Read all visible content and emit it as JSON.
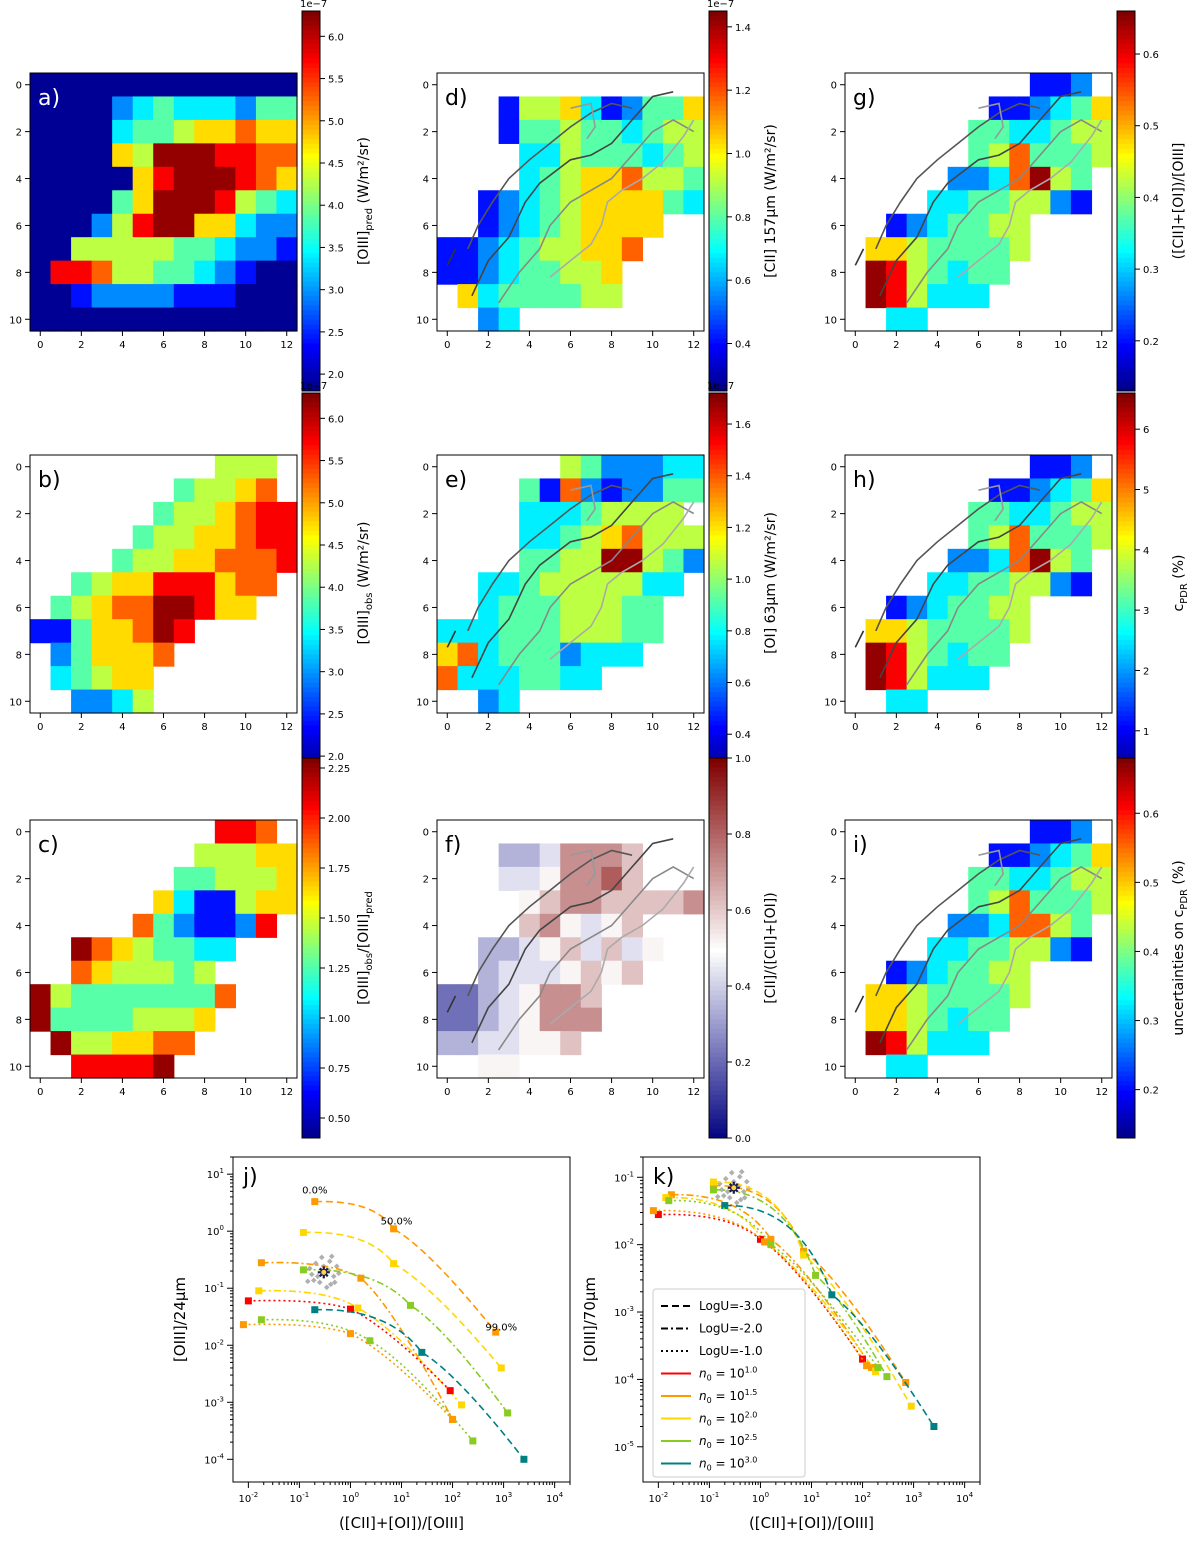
{
  "chart_data": [
    {
      "id": "a",
      "type": "heatmap",
      "panel_label": "a)",
      "label_color": "#ffffff",
      "colorbar": {
        "label": "[OIII]pred (W/m²/sr)",
        "label_main": "[OIII]",
        "label_sub": "pred",
        "label_rest": " (W/m²/sr)",
        "min": 1.8,
        "max": 6.3,
        "ticks": [
          "2.0",
          "2.5",
          "3.0",
          "3.5",
          "4.0",
          "4.5",
          "5.0",
          "5.5",
          "6.0"
        ],
        "tick_values": [
          2.0,
          2.5,
          3.0,
          3.5,
          4.0,
          4.5,
          5.0,
          5.5,
          6.0
        ],
        "exponent": "1e−7"
      },
      "xticks": [
        "0",
        "2",
        "4",
        "6",
        "8",
        "10",
        "12"
      ],
      "yticks": [
        "0",
        "2",
        "4",
        "6",
        "8",
        "10"
      ],
      "grid": [
        "0000000000000",
        "0000234333244",
        "0000344566766",
        "0000659998877",
        "0000068999876",
        "0000469998543",
        "0002589966322",
        "0055555443221",
        "0887554432100",
        "0012222111000",
        "0000000000000"
      ]
    },
    {
      "id": "b",
      "type": "heatmap",
      "panel_label": "b)",
      "label_color": "#000000",
      "colorbar": {
        "label": "[OIII]obs (W/m²/sr)",
        "label_main": "[OIII]",
        "label_sub": "obs",
        "label_rest": " (W/m²/sr)",
        "min": 1.8,
        "max": 6.3,
        "ticks": [
          "2.0",
          "2.5",
          "3.0",
          "3.5",
          "4.0",
          "4.5",
          "5.0",
          "5.5",
          "6.0"
        ],
        "tick_values": [
          2.0,
          2.5,
          3.0,
          3.5,
          4.0,
          4.5,
          5.0,
          5.5,
          6.0
        ],
        "exponent": "1e−7"
      },
      "xticks": [
        "0",
        "2",
        "4",
        "6",
        "8",
        "10",
        "12"
      ],
      "yticks": [
        "0",
        "2",
        "4",
        "6",
        "8",
        "10"
      ],
      "grid": [
        ".........555.",
        ".......45567.",
        "......4556788",
        ".....45566788",
        "....455667778",
        "..4566888677.",
        ".4567799866..",
        "11466798.....",
        ".246667......",
        ".34566.......",
        "..2235......."
      ]
    },
    {
      "id": "c",
      "type": "heatmap",
      "panel_label": "c)",
      "label_color": "#000000",
      "colorbar": {
        "label": "[OIII]obs/[OIII]pred",
        "label_main": "[OIII]",
        "label_sub": "obs",
        "label_rest": "/[OIII]",
        "label_sub2": "pred",
        "min": 0.4,
        "max": 2.3,
        "ticks": [
          "0.50",
          "0.75",
          "1.00",
          "1.25",
          "1.50",
          "1.75",
          "2.00",
          "2.25"
        ],
        "tick_values": [
          0.5,
          0.75,
          1.0,
          1.25,
          1.5,
          1.75,
          2.0,
          2.25
        ],
        "exponent": ""
      },
      "xticks": [
        "0",
        "2",
        "4",
        "6",
        "8",
        "10",
        "12"
      ],
      "yticks": [
        "0",
        "2",
        "4",
        "6",
        "8",
        "10"
      ],
      "grid": [
        ".........887.",
        "........55566",
        ".......445556",
        "......6311566",
        ".....7421128.",
        "..97654433...",
        "..7655545....",
        "9544444447...",
        "944445556....",
        ".9556677.....",
        "..88889......"
      ]
    },
    {
      "id": "d",
      "type": "heatmap",
      "panel_label": "d)",
      "label_color": "#000000",
      "colorbar": {
        "label": "[CII] 157μm (W/m²/sr)",
        "min": 0.25,
        "max": 1.45,
        "ticks": [
          "0.4",
          "0.6",
          "0.8",
          "1.0",
          "1.2",
          "1.4"
        ],
        "tick_values": [
          0.4,
          0.6,
          0.8,
          1.0,
          1.2,
          1.4
        ],
        "exponent": "1e−7"
      },
      "xticks": [
        "0",
        "2",
        "4",
        "6",
        "8",
        "10",
        "12"
      ],
      "yticks": [
        "0",
        "2",
        "4",
        "6",
        "8",
        "10"
      ],
      "grid": [
        ".............",
        "...15563124469",
        "...144544345578",
        "....33544434567",
        "....345667554..",
        "..12345666643..",
        "..123456666....",
        "1123455667.....",
        "112344556......",
        ".63444455......",
        "..23.........."
      ],
      "contours": true
    },
    {
      "id": "e",
      "type": "heatmap",
      "panel_label": "e)",
      "label_color": "#000000",
      "colorbar": {
        "label": "[OI] 63μm (W/m²/sr)",
        "min": 0.25,
        "max": 1.72,
        "ticks": [
          "0.4",
          "0.6",
          "0.8",
          "1.0",
          "1.2",
          "1.4",
          "1.6"
        ],
        "tick_values": [
          0.4,
          0.6,
          0.8,
          1.0,
          1.2,
          1.4,
          1.6
        ],
        "exponent": "1e−7"
      },
      "xticks": [
        "0",
        "2",
        "4",
        "6",
        "8",
        "10",
        "12"
      ],
      "yticks": [
        "0",
        "2",
        "4",
        "6",
        "8",
        "10"
      ],
      "grid": [
        "......5422233",
        "....4172122444",
        "....33345555.",
        "....334567555",
        "....445599542",
        "..3345555533.",
        "..344455544..",
        "33344455544..",
        "6734442333...",
        "73334433.....",
        "..23........."
      ],
      "contours": true
    },
    {
      "id": "f",
      "type": "heatmap",
      "panel_label": "f)",
      "label_color": "#000000",
      "colorbar": {
        "label": "[CII]/([CII]+[OI])",
        "min": 0.0,
        "max": 1.0,
        "ticks": [
          "0.0",
          "0.2",
          "0.4",
          "0.6",
          "0.8",
          "1.0"
        ],
        "tick_values": [
          0.0,
          0.2,
          0.4,
          0.6,
          0.8,
          1.0
        ],
        "exponent": ""
      },
      "colormap": "bwr",
      "xticks": [
        "0",
        "2",
        "4",
        "6",
        "8",
        "10",
        "12"
      ],
      "yticks": [
        "0",
        "2",
        "4",
        "6",
        "8",
        "10"
      ],
      "grid": [
        ".............",
        "...3347776...",
        "...4457786...",
        "....567766667",
        "....675456...",
        "..334564645..",
        "..34445656...",
        "22345776.....",
        "22345777.....",
        "3344556......",
        "..55........."
      ],
      "contours": true
    },
    {
      "id": "g",
      "type": "heatmap",
      "panel_label": "g)",
      "label_color": "#000000",
      "colorbar": {
        "label": "([CII]+[OI])/[OIII]",
        "min": 0.13,
        "max": 0.66,
        "ticks": [
          "0.2",
          "0.3",
          "0.4",
          "0.5",
          "0.6"
        ],
        "tick_values": [
          0.2,
          0.3,
          0.4,
          0.5,
          0.6
        ],
        "exponent": ""
      },
      "xticks": [
        "0",
        "2",
        "4",
        "6",
        "8",
        "10",
        "12"
      ],
      "yticks": [
        "0",
        "2",
        "4",
        "6",
        "8",
        "10"
      ],
      "grid": [
        ".........112.",
        ".......112346",
        "......4433455",
        "......45744455",
        ".....2237954.",
        "....33445521.",
        "..1234455....",
        ".66544445....",
        ".9854344.....",
        ".985333......",
        "..33........."
      ],
      "contours": true
    },
    {
      "id": "h",
      "type": "heatmap",
      "panel_label": "h)",
      "label_color": "#000000",
      "colorbar": {
        "label": "cPDR (%)",
        "label_main": "c",
        "label_sub": "PDR",
        "label_rest": " (%)",
        "min": 0.3,
        "max": 6.6,
        "ticks": [
          "1",
          "2",
          "3",
          "4",
          "5",
          "6"
        ],
        "tick_values": [
          1,
          2,
          3,
          4,
          5,
          6
        ],
        "exponent": ""
      },
      "xticks": [
        "0",
        "2",
        "4",
        "6",
        "8",
        "10",
        "12"
      ],
      "yticks": [
        "0",
        "2",
        "4",
        "6",
        "8",
        "10"
      ],
      "grid": [
        ".........112.",
        ".......112346",
        "......4433455",
        "......45744455",
        ".....2237954.",
        "....33445521.",
        "..1234455....",
        ".66544445....",
        ".9854344.....",
        ".985333......",
        "..33........."
      ],
      "contours": true
    },
    {
      "id": "i",
      "type": "heatmap",
      "panel_label": "i)",
      "label_color": "#000000",
      "colorbar": {
        "label": "uncertainties on cPDR (%)",
        "label_main": "uncertainties on c",
        "label_sub": "PDR",
        "label_rest": " (%)",
        "min": 0.13,
        "max": 0.68,
        "ticks": [
          "0.2",
          "0.3",
          "0.4",
          "0.5",
          "0.6"
        ],
        "tick_values": [
          0.2,
          0.3,
          0.4,
          0.5,
          0.6
        ],
        "exponent": ""
      },
      "xticks": [
        "0",
        "2",
        "4",
        "6",
        "8",
        "10",
        "12"
      ],
      "yticks": [
        "0",
        "2",
        "4",
        "6",
        "8",
        "10"
      ],
      "grid": [
        ".........112.",
        ".......112346",
        "......4433455",
        "......45744455",
        ".....2237754.",
        "....33445521.",
        "..1234455....",
        ".66544445....",
        ".6654344.....",
        ".985333......",
        "..33........."
      ],
      "contours": true
    },
    {
      "id": "j",
      "type": "line",
      "panel_label": "j)",
      "xscale": "log",
      "yscale": "log",
      "xlabel": "([CII]+[OI])/[OIII]",
      "ylabel": "[OIII]/24μm",
      "xlim": [
        0.005,
        20000
      ],
      "ylim": [
        4e-05,
        20
      ],
      "annotations": [
        {
          "text": "0.0%",
          "x": 0.2,
          "y": 4.6
        },
        {
          "text": "50.0%",
          "x": 8,
          "y": 1.3
        },
        {
          "text": "99.0%",
          "x": 900,
          "y": 0.018
        }
      ],
      "series": [
        {
          "name": "n0=10^1.5 LogU=-3",
          "color": "#ff9900",
          "dash": "dashed",
          "x": [
            0.2,
            7,
            700
          ],
          "y": [
            3.3,
            1.1,
            0.017
          ]
        },
        {
          "name": "n0=10^2.0 LogU=-3",
          "color": "#ffd700",
          "dash": "dashed",
          "x": [
            0.12,
            7,
            900
          ],
          "y": [
            0.95,
            0.27,
            0.004
          ]
        },
        {
          "name": "n0=10^1.5 LogU=-2",
          "color": "#ff9900",
          "dash": "dashdot",
          "x": [
            0.018,
            1.6,
            100
          ],
          "y": [
            0.28,
            0.15,
            0.0005
          ]
        },
        {
          "name": "n0=10^2.5 LogU=-2",
          "color": "#88cc22",
          "dash": "dashdot",
          "x": [
            0.12,
            15,
            1200
          ],
          "y": [
            0.21,
            0.05,
            0.00065
          ]
        },
        {
          "name": "n0=10^2.0 LogU=-2",
          "color": "#ffd700",
          "dash": "dashdot",
          "x": [
            0.016,
            1.4,
            150
          ],
          "y": [
            0.09,
            0.045,
            0.0009
          ]
        },
        {
          "name": "n0=10^1.0 LogU=-1",
          "color": "#ff0000",
          "dash": "dotted",
          "x": [
            0.01,
            1,
            90
          ],
          "y": [
            0.06,
            0.043,
            0.0016
          ]
        },
        {
          "name": "n0=10^3.0 LogU=-2",
          "color": "#008080",
          "dash": "dashed",
          "x": [
            0.2,
            25,
            2500
          ],
          "y": [
            0.042,
            0.0075,
            0.0001
          ]
        },
        {
          "name": "n0=10^2.5 LogU=-1",
          "color": "#88cc22",
          "dash": "dotted",
          "x": [
            0.018,
            2.4,
            250
          ],
          "y": [
            0.028,
            0.012,
            0.00021
          ]
        },
        {
          "name": "n0=10^1.5 LogU=-1",
          "color": "#ff9900",
          "dash": "dotted",
          "x": [
            0.008,
            1,
            100
          ],
          "y": [
            0.023,
            0.016,
            0.0005
          ]
        }
      ],
      "observed": {
        "x": 0.3,
        "y": 0.19
      }
    },
    {
      "id": "k",
      "type": "line",
      "panel_label": "k)",
      "xscale": "log",
      "yscale": "log",
      "xlabel": "([CII]+[OI])/[OIII]",
      "ylabel": "[OIII]/70μm",
      "xlim": [
        0.005,
        20000
      ],
      "ylim": [
        3e-06,
        0.2
      ],
      "series": [
        {
          "name": "n0=10^1.5 LogU=-3",
          "color": "#ff9900",
          "dash": "dashed",
          "x": [
            0.12,
            7,
            700
          ],
          "y": [
            0.075,
            0.008,
            9e-05
          ]
        },
        {
          "name": "n0=10^2.0 LogU=-3",
          "color": "#ffd700",
          "dash": "dashed",
          "x": [
            0.12,
            7,
            900
          ],
          "y": [
            0.085,
            0.007,
            4e-05
          ]
        },
        {
          "name": "n0=10^1.5 LogU=-2",
          "color": "#ff9900",
          "dash": "dashdot",
          "x": [
            0.018,
            1.6,
            150
          ],
          "y": [
            0.055,
            0.012,
            0.00015
          ]
        },
        {
          "name": "n0=10^2.5 LogU=-2",
          "color": "#88cc22",
          "dash": "dashdot",
          "x": [
            0.12,
            12,
            300
          ],
          "y": [
            0.065,
            0.0035,
            0.00011
          ]
        },
        {
          "name": "n0=10^2.0 LogU=-2",
          "color": "#ffd700",
          "dash": "dashdot",
          "x": [
            0.014,
            1.2,
            180
          ],
          "y": [
            0.05,
            0.011,
            0.00013
          ]
        },
        {
          "name": "n0=10^1.0 LogU=-1",
          "color": "#ff0000",
          "dash": "dotted",
          "x": [
            0.01,
            1,
            100
          ],
          "y": [
            0.028,
            0.012,
            0.0002
          ]
        },
        {
          "name": "n0=10^3.0 LogU=-2",
          "color": "#008080",
          "dash": "dashed",
          "x": [
            0.2,
            25,
            2500
          ],
          "y": [
            0.038,
            0.0018,
            2e-05
          ]
        },
        {
          "name": "n0=10^2.5 LogU=-1",
          "color": "#88cc22",
          "dash": "dotted",
          "x": [
            0.016,
            1.6,
            200
          ],
          "y": [
            0.045,
            0.01,
            0.00015
          ]
        },
        {
          "name": "n0=10^1.5 LogU=-1",
          "color": "#ff9900",
          "dash": "dotted",
          "x": [
            0.008,
            1.2,
            120
          ],
          "y": [
            0.032,
            0.011,
            0.00016
          ]
        }
      ],
      "observed": {
        "x": 0.3,
        "y": 0.07
      },
      "legend": {
        "placement": "lower-left",
        "entries": [
          {
            "text": "LogU=-3.0",
            "style": "dashed",
            "color": "#000000"
          },
          {
            "text": "LogU=-2.0",
            "style": "dashdot",
            "color": "#000000"
          },
          {
            "text": "LogU=-1.0",
            "style": "dotted",
            "color": "#000000"
          },
          {
            "text": "n0 = 10^1.0",
            "base": "n",
            "sub": "0",
            "mid": " = 10",
            "sup": "1.0",
            "style": "solid",
            "color": "#ff0000"
          },
          {
            "text": "n0 = 10^1.5",
            "base": "n",
            "sub": "0",
            "mid": " = 10",
            "sup": "1.5",
            "style": "solid",
            "color": "#ff9900"
          },
          {
            "text": "n0 = 10^2.0",
            "base": "n",
            "sub": "0",
            "mid": " = 10",
            "sup": "2.0",
            "style": "solid",
            "color": "#ffd700"
          },
          {
            "text": "n0 = 10^2.5",
            "base": "n",
            "sub": "0",
            "mid": " = 10",
            "sup": "2.5",
            "style": "solid",
            "color": "#88cc22"
          },
          {
            "text": "n0 = 10^3.0",
            "base": "n",
            "sub": "0",
            "mid": " = 10",
            "sup": "3.0",
            "style": "solid",
            "color": "#008080"
          }
        ]
      }
    }
  ]
}
